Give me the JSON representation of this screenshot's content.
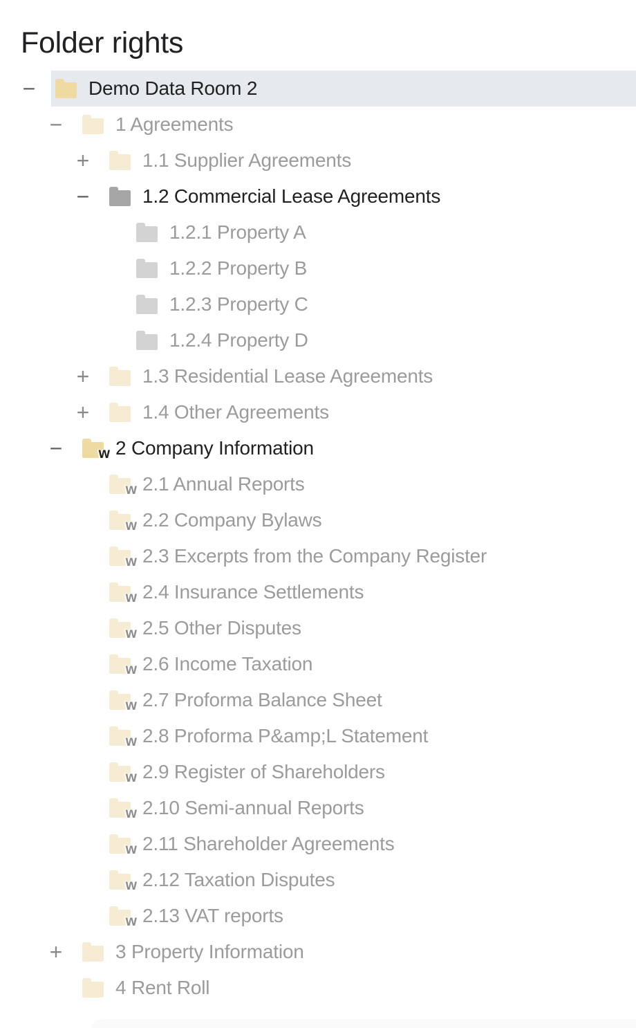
{
  "page": {
    "title": "Folder rights"
  },
  "colors": {
    "folder_yellow": "#efdaa1",
    "folder_yellow_dim": "#f6ecd3",
    "folder_gray": "#a6a6a6",
    "folder_gray_dim": "#d3d3d3",
    "selected_row_background": "#e6e9ed",
    "text_active": "#212121",
    "text_dim": "#9b9b9b"
  },
  "tree": {
    "rows": [
      {
        "label": "Demo Data Room 2",
        "level": 0,
        "toggle": "minus",
        "folder": "yellow",
        "badge": "",
        "dim": false,
        "selected": true
      },
      {
        "label": "1 Agreements",
        "level": 1,
        "toggle": "minus",
        "folder": "yellow",
        "badge": "",
        "dim": true,
        "selected": false
      },
      {
        "label": "1.1 Supplier Agreements",
        "level": 2,
        "toggle": "plus",
        "folder": "yellow",
        "badge": "",
        "dim": true,
        "selected": false
      },
      {
        "label": "1.2 Commercial Lease Agreements",
        "level": 2,
        "toggle": "minus",
        "folder": "gray",
        "badge": "",
        "dim": false,
        "selected": false
      },
      {
        "label": "1.2.1 Property A",
        "level": 3,
        "toggle": "none",
        "folder": "gray",
        "badge": "",
        "dim": true,
        "selected": false
      },
      {
        "label": "1.2.2 Property B",
        "level": 3,
        "toggle": "none",
        "folder": "gray",
        "badge": "",
        "dim": true,
        "selected": false
      },
      {
        "label": "1.2.3 Property C",
        "level": 3,
        "toggle": "none",
        "folder": "gray",
        "badge": "",
        "dim": true,
        "selected": false
      },
      {
        "label": "1.2.4 Property D",
        "level": 3,
        "toggle": "none",
        "folder": "gray",
        "badge": "",
        "dim": true,
        "selected": false
      },
      {
        "label": "1.3 Residential Lease Agreements",
        "level": 2,
        "toggle": "plus",
        "folder": "yellow",
        "badge": "",
        "dim": true,
        "selected": false
      },
      {
        "label": "1.4 Other Agreements",
        "level": 2,
        "toggle": "plus",
        "folder": "yellow",
        "badge": "",
        "dim": true,
        "selected": false
      },
      {
        "label": "2 Company Information",
        "level": 1,
        "toggle": "minus",
        "folder": "yellow",
        "badge": "w",
        "dim": false,
        "selected": false
      },
      {
        "label": "2.1 Annual Reports",
        "level": 2,
        "toggle": "none",
        "folder": "yellow",
        "badge": "w",
        "dim": true,
        "selected": false
      },
      {
        "label": "2.2 Company Bylaws",
        "level": 2,
        "toggle": "none",
        "folder": "yellow",
        "badge": "w",
        "dim": true,
        "selected": false
      },
      {
        "label": "2.3 Excerpts from the Company Register",
        "level": 2,
        "toggle": "none",
        "folder": "yellow",
        "badge": "w",
        "dim": true,
        "selected": false
      },
      {
        "label": "2.4 Insurance Settlements",
        "level": 2,
        "toggle": "none",
        "folder": "yellow",
        "badge": "w",
        "dim": true,
        "selected": false
      },
      {
        "label": "2.5 Other Disputes",
        "level": 2,
        "toggle": "none",
        "folder": "yellow",
        "badge": "w",
        "dim": true,
        "selected": false
      },
      {
        "label": "2.6 Income Taxation",
        "level": 2,
        "toggle": "none",
        "folder": "yellow",
        "badge": "w",
        "dim": true,
        "selected": false
      },
      {
        "label": "2.7 Proforma Balance Sheet",
        "level": 2,
        "toggle": "none",
        "folder": "yellow",
        "badge": "w",
        "dim": true,
        "selected": false
      },
      {
        "label": "2.8 Proforma P&amp;L Statement",
        "level": 2,
        "toggle": "none",
        "folder": "yellow",
        "badge": "w",
        "dim": true,
        "selected": false
      },
      {
        "label": "2.9 Register of Shareholders",
        "level": 2,
        "toggle": "none",
        "folder": "yellow",
        "badge": "w",
        "dim": true,
        "selected": false
      },
      {
        "label": "2.10 Semi-annual Reports",
        "level": 2,
        "toggle": "none",
        "folder": "yellow",
        "badge": "w",
        "dim": true,
        "selected": false
      },
      {
        "label": "2.11 Shareholder Agreements",
        "level": 2,
        "toggle": "none",
        "folder": "yellow",
        "badge": "w",
        "dim": true,
        "selected": false
      },
      {
        "label": "2.12 Taxation Disputes",
        "level": 2,
        "toggle": "none",
        "folder": "yellow",
        "badge": "w",
        "dim": true,
        "selected": false
      },
      {
        "label": "2.13 VAT reports",
        "level": 2,
        "toggle": "none",
        "folder": "yellow",
        "badge": "w",
        "dim": true,
        "selected": false
      },
      {
        "label": "3 Property Information",
        "level": 1,
        "toggle": "plus",
        "folder": "yellow",
        "badge": "",
        "dim": true,
        "selected": false
      },
      {
        "label": "4 Rent Roll",
        "level": 1,
        "toggle": "none",
        "folder": "yellow",
        "badge": "",
        "dim": true,
        "selected": false
      }
    ]
  }
}
